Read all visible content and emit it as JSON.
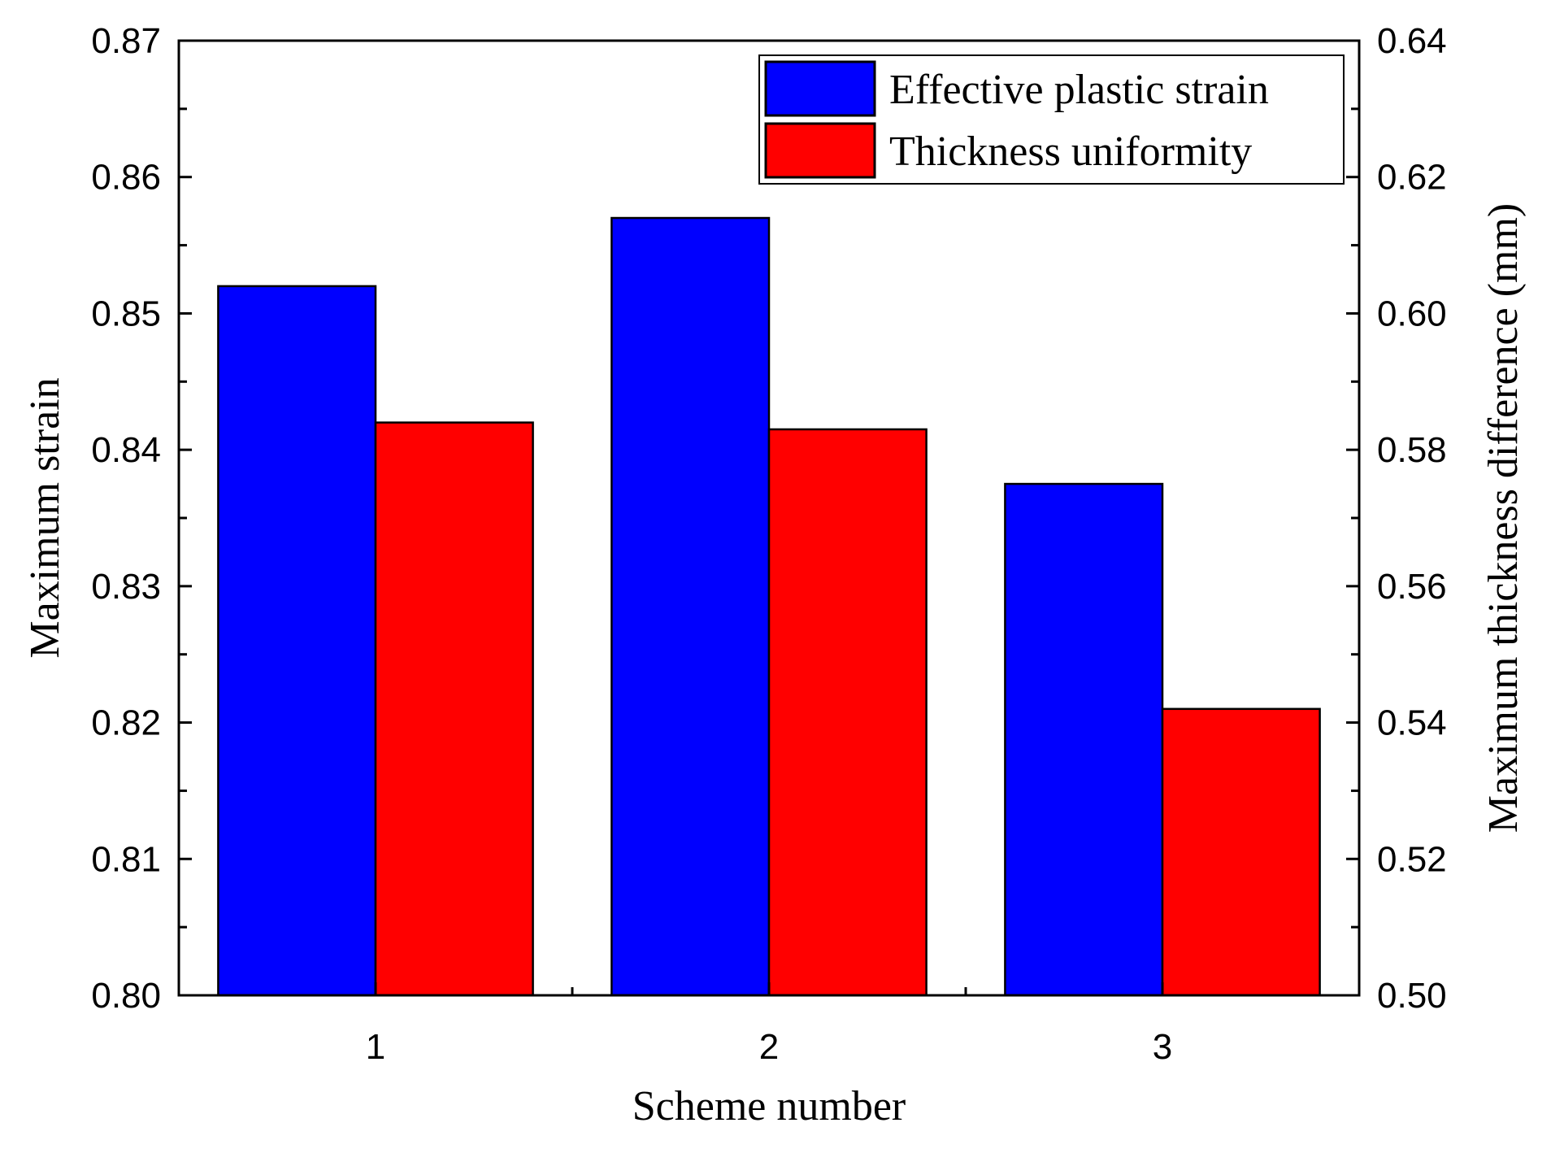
{
  "chart_data": {
    "type": "bar",
    "categories": [
      "1",
      "2",
      "3"
    ],
    "series": [
      {
        "name": "Effective plastic strain",
        "axis": "left",
        "color": "#0000ff",
        "values": [
          0.852,
          0.857,
          0.8375
        ]
      },
      {
        "name": "Thickness uniformity",
        "axis": "right",
        "color": "#ff0000",
        "values": [
          0.584,
          0.583,
          0.542
        ]
      }
    ],
    "xlabel": "Scheme number",
    "ylabel": "Maximum strain",
    "y2label": "Maximum thickness difference (mm)",
    "ylim": [
      0.8,
      0.87
    ],
    "y2lim": [
      0.5,
      0.64
    ],
    "yticks": [
      "0.80",
      "0.81",
      "0.82",
      "0.83",
      "0.84",
      "0.85",
      "0.86",
      "0.87"
    ],
    "y2ticks": [
      "0.50",
      "0.52",
      "0.54",
      "0.56",
      "0.58",
      "0.60",
      "0.62",
      "0.64"
    ],
    "legend_position": "top-right",
    "grid": false
  }
}
